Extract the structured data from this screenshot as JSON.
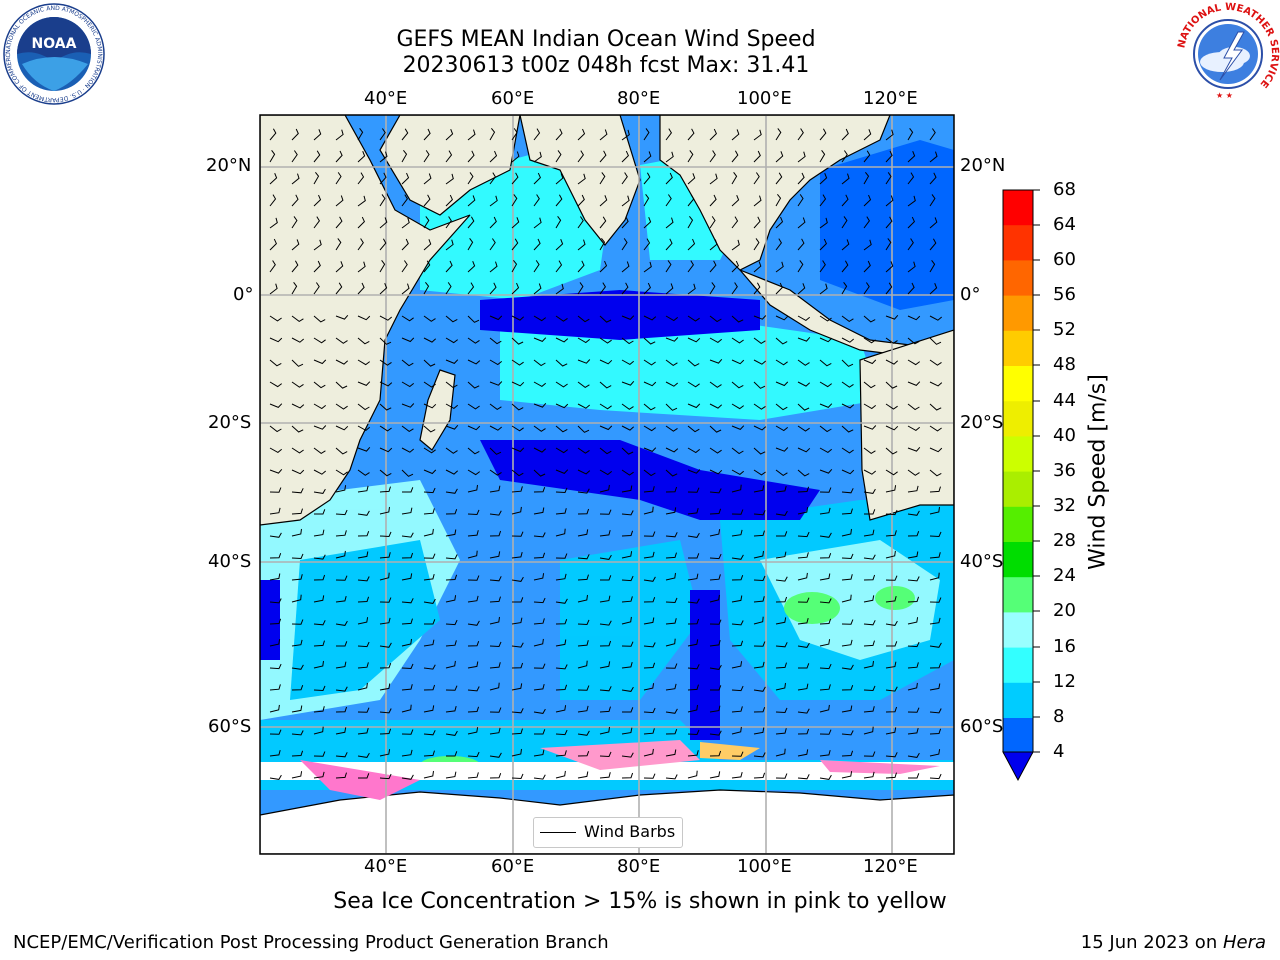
{
  "header": {
    "title_line1": "GEFS MEAN Indian Ocean Wind Speed",
    "title_line2": "20230613 t00z 048h fcst   Max: 31.41"
  },
  "map": {
    "lon_ticks": [
      "40°E",
      "60°E",
      "80°E",
      "100°E",
      "120°E"
    ],
    "lat_ticks": [
      "20°N",
      "0°",
      "20°S",
      "40°S",
      "60°S"
    ],
    "legend_label": "Wind Barbs",
    "land_color": "#eeeedd",
    "ocean_base_color": "#3399ff"
  },
  "colorbar": {
    "label": "Wind Speed [m/s]",
    "ticks": [
      "68",
      "64",
      "60",
      "56",
      "52",
      "48",
      "44",
      "40",
      "36",
      "32",
      "28",
      "24",
      "20",
      "16",
      "12",
      "8",
      "4"
    ],
    "colors": [
      "#0000ee",
      "#0066ff",
      "#00ccff",
      "#33ffff",
      "#99ffff",
      "#55ff77",
      "#00dd00",
      "#55ee00",
      "#aaee00",
      "#ccff00",
      "#eeee00",
      "#ffff00",
      "#ffcc00",
      "#ff9900",
      "#ff6600",
      "#ff3300",
      "#ff0000"
    ]
  },
  "footer": {
    "sea_ice_note": "Sea Ice Concentration > 15% is shown in pink to yellow",
    "credit_left": "NCEP/EMC/Verification Post Processing Product Generation Branch",
    "credit_date": "15 Jun 2023 on ",
    "credit_machine": "Hera"
  },
  "logos": {
    "noaa_text": "NOAA",
    "noaa_ring_text": "NATIONAL OCEANIC AND ATMOSPHERIC ADMINISTRATION · U.S. DEPARTMENT OF COMMERCE",
    "nws_ring_text": "NATIONAL WEATHER SERVICE"
  }
}
